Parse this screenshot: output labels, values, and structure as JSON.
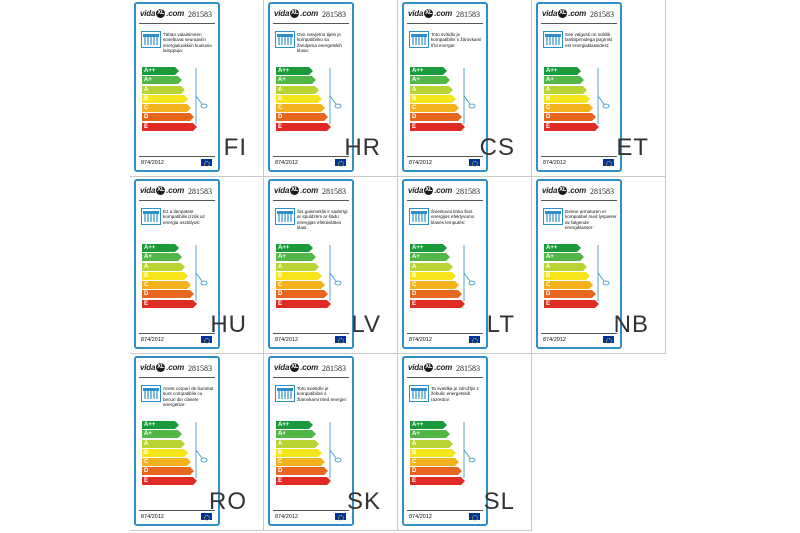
{
  "labels": [
    {
      "lang": "FI",
      "code": "281583",
      "text": "Tähän valaisimeen soveltuvat seuraaviin energialuokkiin kuuluvia lamppuja:",
      "reg": "874/2012"
    },
    {
      "lang": "HR",
      "code": "281583",
      "text": "Ovo rasvjetno tijelo je kompatibilno sa žaruljama energetskih klasa:",
      "reg": "874/2012"
    },
    {
      "lang": "CS",
      "code": "281583",
      "text": "Toto svítidlo je kompatibilní s žárovkami tříd energie:",
      "reg": "874/2012"
    },
    {
      "lang": "ET",
      "code": "281583",
      "text": "See valgusti on sobilik lambipirnidega järgmist est energiaklassidest:",
      "reg": "874/2012"
    },
    {
      "lang": "HU",
      "code": "281583",
      "text": "Ez a lámpatest kompatibilis izzók az energia osztályok:",
      "reg": "874/2012"
    },
    {
      "lang": "LV",
      "code": "281583",
      "text": "Šis gaismeklis ir saderīgi ar spuldzēm ar šādu energijas efektivitātes klasi:",
      "reg": "874/2012"
    },
    {
      "lang": "LT",
      "code": "281583",
      "text": "Šviestuvui tinka šios energijos efektyvumo klasės lemputės:",
      "reg": "874/2012"
    },
    {
      "lang": "NB",
      "code": "281583",
      "text": "Denne armaturen er kompatibel med lyspærer av følgende energiklasser:",
      "reg": "874/2012"
    },
    {
      "lang": "RO",
      "code": "281583",
      "text": "Acest corpuri de iluminat sunt compatibile cu becuri din clasele energetice:",
      "reg": "874/2012"
    },
    {
      "lang": "SK",
      "code": "281583",
      "text": "Toto svietidlo je kompatibilné s žiarovkami tried energie:",
      "reg": "874/2012"
    },
    {
      "lang": "SL",
      "code": "281583",
      "text": "Ta svetilka je združljiv z žebulic energetskih razredov:",
      "reg": "874/2012"
    }
  ],
  "brand": {
    "pre": "vida",
    "mark": "XL",
    "post": ".com"
  },
  "energy_classes": [
    {
      "name": "A++",
      "color": "#1b9a3c",
      "width": 33
    },
    {
      "name": "A+",
      "color": "#52b747",
      "width": 36
    },
    {
      "name": "A",
      "color": "#b8d433",
      "width": 39
    },
    {
      "name": "B",
      "color": "#f5e51a",
      "width": 42
    },
    {
      "name": "C",
      "color": "#f3b21b",
      "width": 45
    },
    {
      "name": "D",
      "color": "#e8671f",
      "width": 48
    },
    {
      "name": "E",
      "color": "#e02a24",
      "width": 51
    }
  ]
}
